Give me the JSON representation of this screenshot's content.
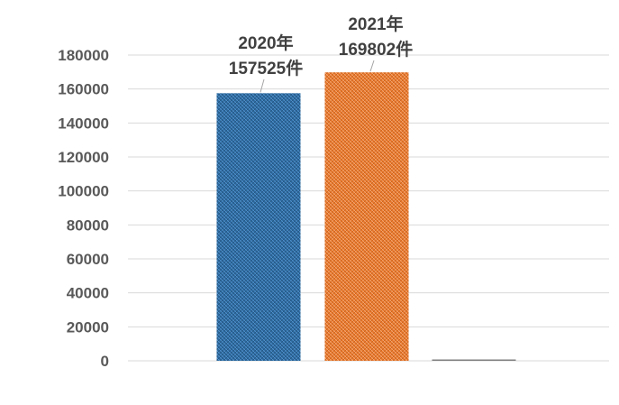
{
  "chart_data": {
    "type": "bar",
    "categories": [
      "",
      "",
      ""
    ],
    "values": [
      157525,
      169802,
      0
    ],
    "ylim": [
      0,
      180000
    ],
    "yticks": [
      0,
      20000,
      40000,
      60000,
      80000,
      100000,
      120000,
      140000,
      160000,
      180000
    ],
    "ytick_labels": [
      "0",
      "20000",
      "40000",
      "60000",
      "80000",
      "100000",
      "120000",
      "140000",
      "160000",
      "180000"
    ],
    "grid": true,
    "legend": "none",
    "bar_colors": [
      "#2E6DA4",
      "#ED7D31",
      "#7F7F7F"
    ],
    "data_labels": [
      {
        "line1": "2020年",
        "line2": "157525件"
      },
      {
        "line1": "2021年",
        "line2": "169802件"
      },
      null
    ]
  }
}
